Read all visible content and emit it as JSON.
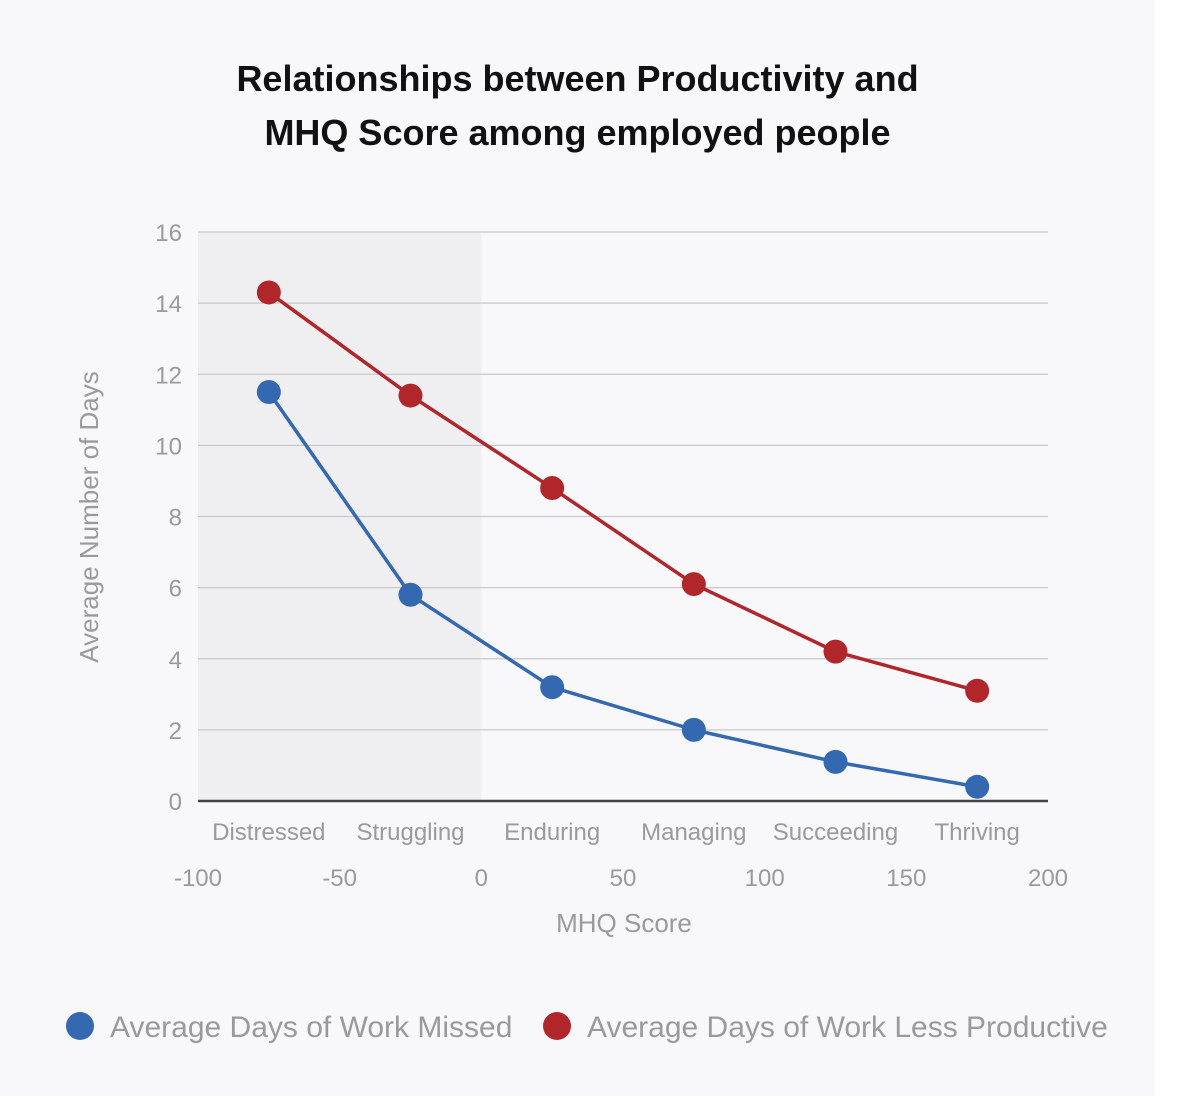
{
  "chart_data": {
    "type": "line",
    "title_lines": [
      "Relationships between Productivity and",
      "MHQ Score among employed people"
    ],
    "xlabel": "MHQ Score",
    "ylabel": "Average Number of Days",
    "xlim": [
      -100,
      200
    ],
    "ylim": [
      0,
      16
    ],
    "x_ticks": [
      "-100",
      "-50",
      "0",
      "50",
      "100",
      "150",
      "200"
    ],
    "y_ticks": [
      "0",
      "2",
      "4",
      "6",
      "8",
      "10",
      "12",
      "14",
      "16"
    ],
    "categories": [
      "Distressed",
      "Struggling",
      "Enduring",
      "Managing",
      "Succeeding",
      "Thriving"
    ],
    "category_x": [
      -75,
      -25,
      25,
      75,
      125,
      175
    ],
    "shaded_range": [
      -100,
      0
    ],
    "grid": true,
    "legend_position": "bottom",
    "series": [
      {
        "name": "Average Days of Work Missed",
        "color": "#3468b0",
        "values": [
          11.5,
          5.8,
          3.2,
          2.0,
          1.1,
          0.4
        ]
      },
      {
        "name": "Average Days of Work Less Productive",
        "color": "#b0262b",
        "values": [
          14.3,
          11.4,
          8.8,
          6.1,
          4.2,
          3.1
        ]
      }
    ]
  }
}
